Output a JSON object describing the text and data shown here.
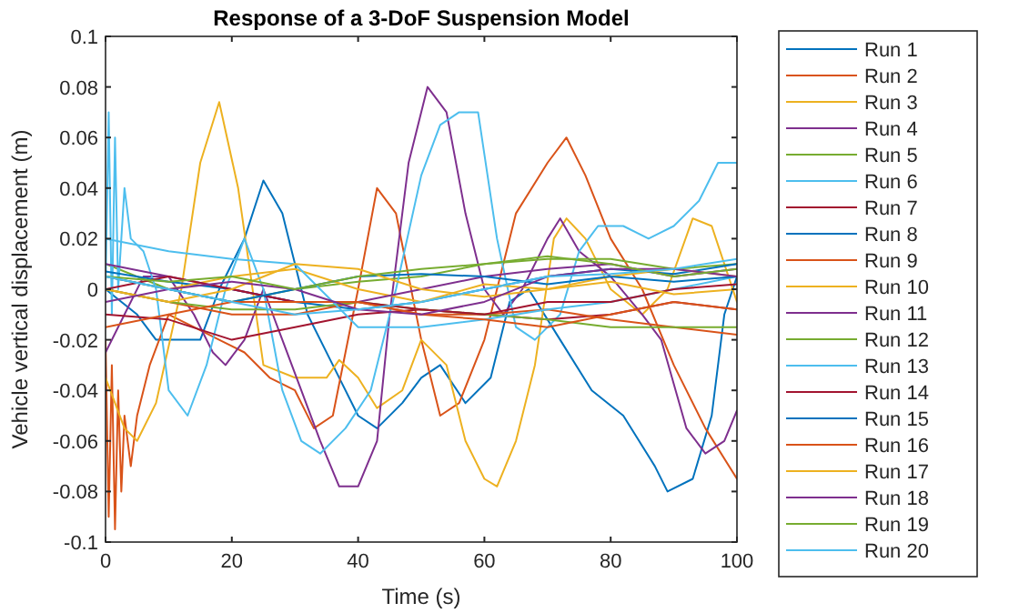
{
  "chart_data": {
    "type": "line",
    "title": "Response of a 3-DoF Suspension Model",
    "xlabel": "Time (s)",
    "ylabel": "Vehicle vertical displacement (m)",
    "xlim": [
      0,
      100
    ],
    "ylim": [
      -0.1,
      0.1
    ],
    "xticks": [
      0,
      20,
      40,
      60,
      80,
      100
    ],
    "yticks": [
      -0.1,
      -0.08,
      -0.06,
      -0.04,
      -0.02,
      0,
      0.02,
      0.04,
      0.06,
      0.08,
      0.1
    ],
    "legend": "right",
    "grid": false,
    "marker": "none",
    "line_style": "solid",
    "x": [
      0,
      10,
      20,
      30,
      40,
      50,
      60,
      70,
      80,
      90,
      100
    ],
    "series": [
      {
        "name": "Run 1",
        "color": "#0072bd",
        "x": [
          0,
          5,
          8,
          10,
          15,
          18,
          22,
          25,
          28,
          32,
          36,
          40,
          43,
          47,
          50,
          53,
          57,
          61,
          64,
          67,
          72,
          77,
          82,
          87,
          89,
          93,
          96,
          98,
          100
        ],
        "values": [
          0,
          -0.01,
          -0.02,
          -0.02,
          -0.02,
          0,
          0.02,
          0.043,
          0.03,
          -0.01,
          -0.03,
          -0.05,
          -0.055,
          -0.045,
          -0.035,
          -0.03,
          -0.045,
          -0.035,
          -0.005,
          0,
          -0.02,
          -0.04,
          -0.05,
          -0.07,
          -0.08,
          -0.075,
          -0.05,
          -0.01,
          0.005
        ]
      },
      {
        "name": "Run 2",
        "color": "#d95319",
        "x": [
          0,
          0.5,
          1,
          1.5,
          2,
          2.5,
          3,
          4,
          5,
          7,
          10,
          14,
          18,
          22,
          26,
          30,
          33,
          36,
          40,
          43,
          46,
          50,
          53,
          56,
          60,
          65,
          70,
          73,
          76,
          80,
          85,
          90,
          95,
          100
        ],
        "values": [
          -0.02,
          -0.09,
          -0.03,
          -0.095,
          -0.04,
          -0.08,
          -0.05,
          -0.07,
          -0.05,
          -0.03,
          -0.01,
          -0.015,
          -0.02,
          -0.025,
          -0.035,
          -0.04,
          -0.055,
          -0.05,
          0,
          0.04,
          0.03,
          -0.02,
          -0.05,
          -0.045,
          -0.02,
          0.03,
          0.05,
          0.06,
          0.045,
          0.02,
          0,
          -0.03,
          -0.055,
          -0.075
        ]
      },
      {
        "name": "Run 3",
        "color": "#edb120",
        "x": [
          0,
          3,
          5,
          8,
          12,
          15,
          18,
          21,
          25,
          30,
          35,
          37,
          40,
          43,
          47,
          50,
          54,
          57,
          60,
          62,
          65,
          68,
          71,
          73,
          76,
          80,
          85,
          89,
          93,
          96,
          100
        ],
        "values": [
          -0.035,
          -0.055,
          -0.06,
          -0.045,
          0,
          0.05,
          0.074,
          0.04,
          -0.03,
          -0.035,
          -0.035,
          -0.028,
          -0.035,
          -0.047,
          -0.04,
          -0.02,
          -0.03,
          -0.06,
          -0.075,
          -0.078,
          -0.06,
          -0.03,
          0.02,
          0.028,
          0.02,
          0,
          -0.01,
          0,
          0.028,
          0.025,
          -0.005
        ]
      },
      {
        "name": "Run 4",
        "color": "#7e2f8e",
        "x": [
          0,
          3,
          6,
          10,
          14,
          17,
          19,
          22,
          25,
          28,
          31,
          34,
          37,
          40,
          43,
          45,
          48,
          51,
          54,
          57,
          60,
          63,
          66,
          70,
          72,
          75,
          80,
          85,
          88,
          92,
          95,
          98,
          100
        ],
        "values": [
          -0.025,
          -0.01,
          0.005,
          0.005,
          -0.01,
          -0.025,
          -0.03,
          -0.02,
          0,
          -0.02,
          -0.04,
          -0.06,
          -0.078,
          -0.078,
          -0.06,
          -0.01,
          0.05,
          0.08,
          0.07,
          0.03,
          0,
          -0.01,
          0,
          0.02,
          0.028,
          0.015,
          0.005,
          -0.01,
          -0.02,
          -0.055,
          -0.065,
          -0.06,
          -0.048
        ]
      },
      {
        "name": "Run 5",
        "color": "#77ac30",
        "values": [
          0.01,
          0,
          -0.005,
          0,
          0.003,
          0.005,
          0.01,
          0.012,
          0.012,
          0.008,
          0.01
        ]
      },
      {
        "name": "Run 6",
        "color": "#4dbeee",
        "x": [
          0,
          0.5,
          1,
          1.5,
          2,
          3,
          4,
          6,
          8,
          10,
          13,
          16,
          19,
          22,
          25,
          28,
          31,
          34,
          38,
          42,
          46,
          50,
          53,
          56,
          59,
          62,
          65,
          68,
          72,
          75,
          78,
          82,
          86,
          90,
          94,
          97,
          100
        ],
        "values": [
          0,
          0.07,
          -0.01,
          0.06,
          0,
          0.04,
          0.02,
          0.015,
          0,
          -0.04,
          -0.05,
          -0.03,
          0,
          0.02,
          0,
          -0.04,
          -0.06,
          -0.065,
          -0.055,
          -0.04,
          0,
          0.045,
          0.065,
          0.07,
          0.07,
          0.02,
          -0.015,
          -0.02,
          -0.01,
          0.015,
          0.025,
          0.025,
          0.02,
          0.025,
          0.035,
          0.05,
          0.05
        ]
      },
      {
        "name": "Run 7",
        "color": "#a2142f",
        "values": [
          -0.01,
          -0.012,
          -0.02,
          -0.015,
          -0.01,
          -0.008,
          -0.01,
          -0.012,
          -0.01,
          -0.005,
          -0.008
        ]
      },
      {
        "name": "Run 8",
        "color": "#0072bd",
        "values": [
          0.007,
          0.003,
          0,
          -0.005,
          -0.008,
          -0.005,
          0,
          0.005,
          0.008,
          0.006,
          0.01
        ]
      },
      {
        "name": "Run 9",
        "color": "#d95319",
        "values": [
          0,
          -0.005,
          -0.01,
          -0.01,
          -0.005,
          -0.01,
          -0.01,
          -0.008,
          -0.012,
          -0.015,
          -0.018
        ]
      },
      {
        "name": "Run 10",
        "color": "#edb120",
        "values": [
          0.005,
          0,
          0.005,
          0.008,
          0,
          -0.005,
          0.002,
          0,
          0.005,
          0.008,
          0.005
        ]
      },
      {
        "name": "Run 11",
        "color": "#7e2f8e",
        "values": [
          0.01,
          0.005,
          0,
          -0.005,
          -0.005,
          0,
          0.005,
          0.008,
          0.01,
          0.005,
          0.008
        ]
      },
      {
        "name": "Run 12",
        "color": "#77ac30",
        "values": [
          0,
          -0.005,
          -0.008,
          -0.008,
          -0.005,
          -0.008,
          -0.01,
          -0.012,
          -0.015,
          -0.015,
          -0.015
        ]
      },
      {
        "name": "Run 13",
        "color": "#4dbeee",
        "values": [
          0.02,
          0.015,
          0.012,
          0.01,
          -0.015,
          -0.015,
          -0.012,
          -0.008,
          -0.005,
          0,
          0.005
        ]
      },
      {
        "name": "Run 14",
        "color": "#a2142f",
        "values": [
          0,
          0.005,
          0,
          -0.005,
          -0.005,
          -0.008,
          -0.01,
          -0.005,
          -0.005,
          0,
          0.002
        ]
      },
      {
        "name": "Run 15",
        "color": "#0072bd",
        "values": [
          0.005,
          0,
          -0.005,
          0,
          0.005,
          0.006,
          0.005,
          0.002,
          0.005,
          0.003,
          0.005
        ]
      },
      {
        "name": "Run 16",
        "color": "#d95319",
        "values": [
          -0.015,
          -0.01,
          -0.005,
          -0.005,
          -0.005,
          -0.01,
          -0.012,
          -0.015,
          -0.01,
          -0.005,
          -0.008
        ]
      },
      {
        "name": "Run 17",
        "color": "#edb120",
        "values": [
          0,
          -0.005,
          0,
          0.01,
          0.008,
          0,
          -0.003,
          0,
          0.003,
          -0.002,
          0
        ]
      },
      {
        "name": "Run 18",
        "color": "#7e2f8e",
        "values": [
          -0.005,
          0,
          0.003,
          0,
          -0.008,
          -0.01,
          -0.005,
          0.005,
          0.008,
          0.008,
          0.005
        ]
      },
      {
        "name": "Run 19",
        "color": "#77ac30",
        "values": [
          0.005,
          0.003,
          0.005,
          0,
          0.005,
          0.008,
          0.01,
          0.013,
          0.01,
          0.005,
          0.008
        ]
      },
      {
        "name": "Run 20",
        "color": "#4dbeee",
        "values": [
          0.005,
          0,
          -0.005,
          -0.01,
          -0.008,
          -0.005,
          0,
          0.005,
          0.006,
          0.008,
          0.012
        ]
      }
    ]
  }
}
